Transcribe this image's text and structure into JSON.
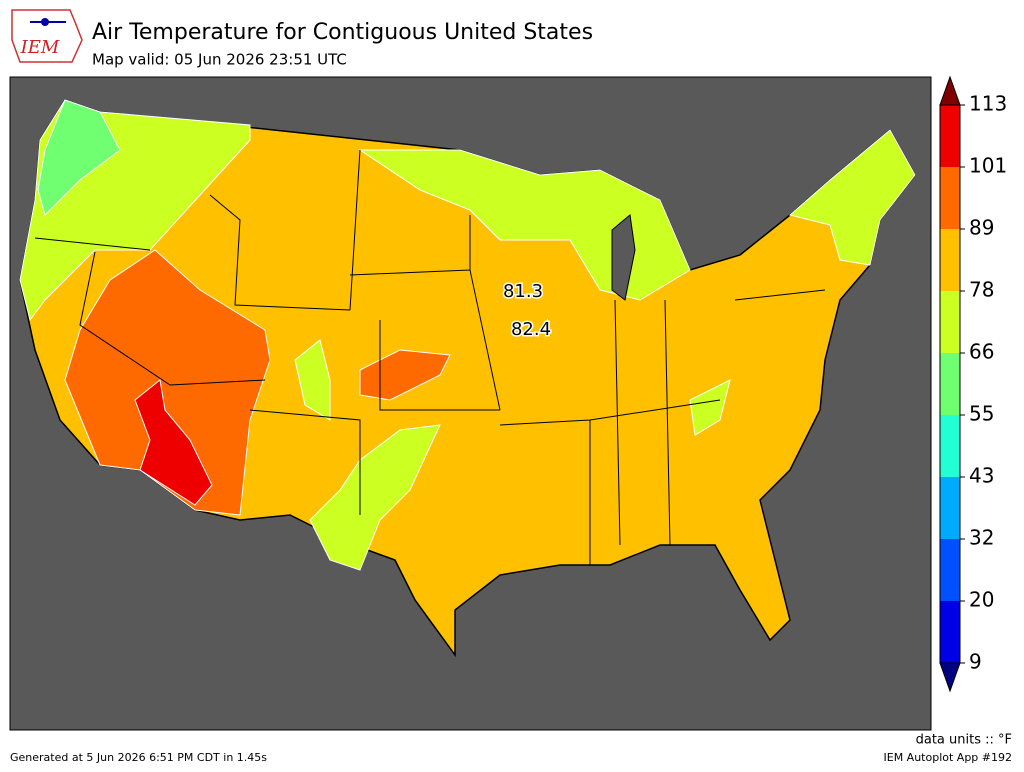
{
  "header": {
    "logo": "IEM",
    "title": "Air Temperature for Contiguous United States",
    "subtitle": "Map valid: 05 Jun 2026 23:51 UTC"
  },
  "colorbar": {
    "ticks": [
      9,
      20,
      32,
      43,
      55,
      66,
      78,
      89,
      101,
      113
    ],
    "colors": [
      "#0000e6",
      "#0050ff",
      "#00aaff",
      "#22ffd4",
      "#70ff70",
      "#ccff22",
      "#ffc000",
      "#ff6a00",
      "#ee0000"
    ],
    "under_color": "#000080",
    "over_color": "#800000"
  },
  "observations": [
    {
      "value": 81.3
    },
    {
      "value": 82.4
    }
  ],
  "units": "data units :: °F",
  "footer": {
    "left": "Generated at 5 Jun 2026 6:51 PM CDT in 1.45s",
    "right": "IEM Autoplot App #192"
  }
}
